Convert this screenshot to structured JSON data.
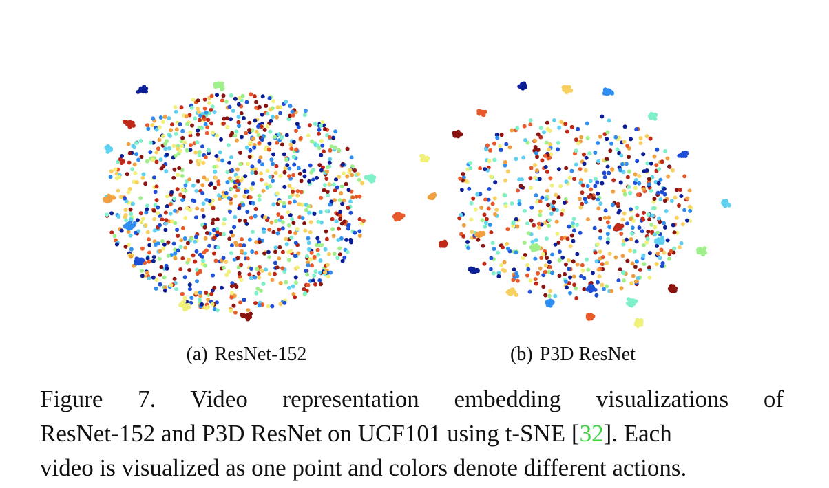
{
  "colors": {
    "palette": [
      "#0b1e96",
      "#1f4fd6",
      "#2f8ef0",
      "#5fd0f0",
      "#7ff0c8",
      "#9ff08a",
      "#f0f07a",
      "#f8d060",
      "#f0a040",
      "#e85a2a",
      "#c02818",
      "#8a1410"
    ],
    "citation": "#43d143"
  },
  "chart_data": [
    {
      "type": "scatter",
      "method": "t-SNE",
      "caption_label": "(a)",
      "caption_text": "ResNet-152",
      "axes": "hidden",
      "note_points": "one point per video, colored by action class; points largely intermixed in one dense cloud"
    },
    {
      "type": "scatter",
      "method": "t-SNE",
      "caption_label": "(b)",
      "caption_text": "P3D ResNet",
      "axes": "hidden",
      "note_points": "one point per video, colored by action class; many tight single-color clusters around the periphery"
    }
  ],
  "caption": {
    "line1": "Figure 7. Video representation embedding visualizations of",
    "line2_pre": "ResNet-152 and P3D ResNet on UCF101 using t-SNE [",
    "citation": "32",
    "line2_post": "]. Each",
    "line3": "video is visualized as one point and colors denote different actions."
  }
}
